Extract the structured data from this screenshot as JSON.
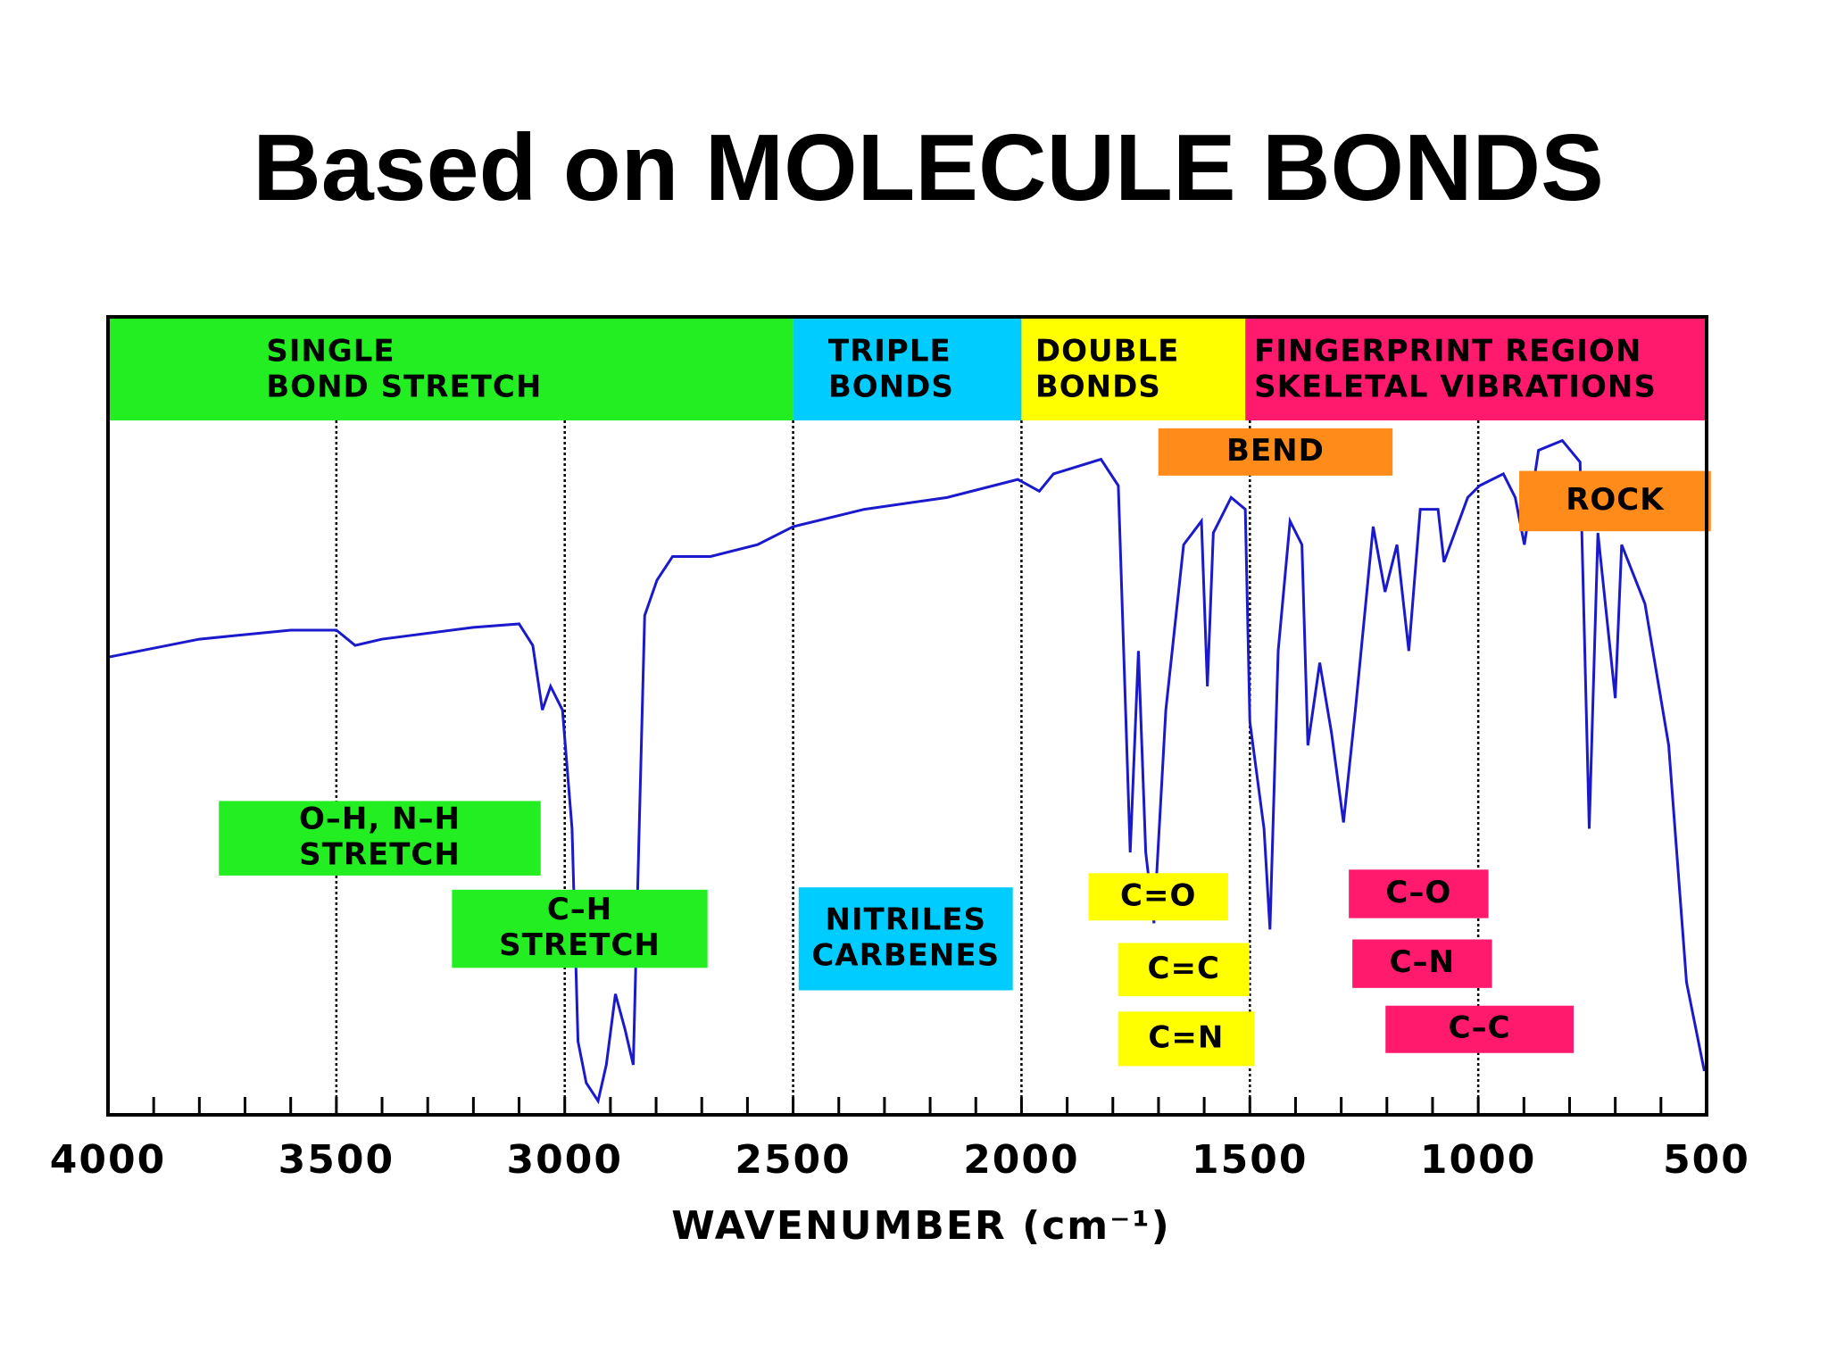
{
  "chart_data": {
    "type": "line",
    "title": "Based on MOLECULE BONDS",
    "x_label": "WAVENUMBER (cm⁻¹)",
    "xlim": [
      4000,
      500
    ],
    "xticks": [
      4000,
      3500,
      3000,
      2500,
      2000,
      1500,
      1000,
      500
    ],
    "xminorticks": [
      3900,
      3800,
      3700,
      3600,
      3400,
      3300,
      3200,
      3100,
      2900,
      2800,
      2700,
      2600,
      2400,
      2300,
      2200,
      2100,
      1900,
      1800,
      1700,
      1600,
      1400,
      1300,
      1200,
      1100,
      900,
      800,
      700,
      600
    ],
    "ylim": [
      0,
      100
    ],
    "grid": true,
    "regions": [
      {
        "lines": [
          "SINGLE",
          "BOND STRETCH"
        ],
        "x": [
          4000,
          2500
        ],
        "color": "#22ee22"
      },
      {
        "lines": [
          "TRIPLE",
          "BONDS"
        ],
        "x": [
          2500,
          2000
        ],
        "color": "#00ccff"
      },
      {
        "lines": [
          "DOUBLE",
          "BONDS"
        ],
        "x": [
          2000,
          1510
        ],
        "color": "#ffff00"
      },
      {
        "lines": [
          "FINGERPRINT REGION",
          "SKELETAL VIBRATIONS"
        ],
        "x": [
          1510,
          500
        ],
        "color": "#ff1a6e"
      }
    ],
    "annotations": [
      {
        "lines": [
          "BEND"
        ],
        "color": "#ff8c1a"
      },
      {
        "lines": [
          "ROCK"
        ],
        "color": "#ff8c1a"
      },
      {
        "lines": [
          "O–H, N–H",
          "STRETCH"
        ],
        "color": "#22ee22"
      },
      {
        "lines": [
          "C–H",
          "STRETCH"
        ],
        "color": "#22ee22"
      },
      {
        "lines": [
          "NITRILES",
          "CARBENES"
        ],
        "color": "#00ccff"
      },
      {
        "lines": [
          "C=O"
        ],
        "color": "#ffff00"
      },
      {
        "lines": [
          "C=C"
        ],
        "color": "#ffff00"
      },
      {
        "lines": [
          "C=N"
        ],
        "color": "#ffff00"
      },
      {
        "lines": [
          "C–O"
        ],
        "color": "#ff1a6e"
      },
      {
        "lines": [
          "C–N"
        ],
        "color": "#ff1a6e"
      },
      {
        "lines": [
          "C–C"
        ],
        "color": "#ff1a6e"
      }
    ],
    "series": [
      {
        "color": "#1a1acc",
        "x": [
          4000,
          3800,
          3600,
          3500,
          3459,
          3400,
          3200,
          3100,
          3070,
          3049,
          3031,
          3005,
          2984,
          2971,
          2953,
          2927,
          2909,
          2889,
          2868,
          2850,
          2837,
          2825,
          2798,
          2764,
          2681,
          2578,
          2500,
          2344,
          2163,
          2008,
          1961,
          1930,
          1826,
          1788,
          1762,
          1744,
          1728,
          1710,
          1684,
          1645,
          1606,
          1593,
          1580,
          1541,
          1510,
          1500,
          1469,
          1456,
          1438,
          1412,
          1386,
          1373,
          1347,
          1321,
          1295,
          1269,
          1230,
          1204,
          1178,
          1152,
          1127,
          1088,
          1075,
          1023,
          997,
          945,
          919,
          899,
          868,
          816,
          777,
          757,
          738,
          700,
          686,
          635,
          583,
          544,
          505
        ],
        "values": [
          65.9,
          68.5,
          69.8,
          69.8,
          67.6,
          68.5,
          70.2,
          70.7,
          67.6,
          58.3,
          61.7,
          58.3,
          41.2,
          10.6,
          4.6,
          2.0,
          7.2,
          17.4,
          12.3,
          7.2,
          41.2,
          71.9,
          77.0,
          80.4,
          80.4,
          82.1,
          84.7,
          87.2,
          88.9,
          91.5,
          89.8,
          92.3,
          94.4,
          90.6,
          37.8,
          66.8,
          37.8,
          27.6,
          58.3,
          82.1,
          85.5,
          61.7,
          83.8,
          88.9,
          87.2,
          56.6,
          41.2,
          26.7,
          66.8,
          85.5,
          82.1,
          53.2,
          65.1,
          54.9,
          42.1,
          58.3,
          84.7,
          75.3,
          82.1,
          66.8,
          87.2,
          87.2,
          79.6,
          88.9,
          90.6,
          92.3,
          88.9,
          82.1,
          95.7,
          97.1,
          94.0,
          41.2,
          83.8,
          60.0,
          82.1,
          73.6,
          53.2,
          19.1,
          6.3
        ]
      }
    ]
  }
}
